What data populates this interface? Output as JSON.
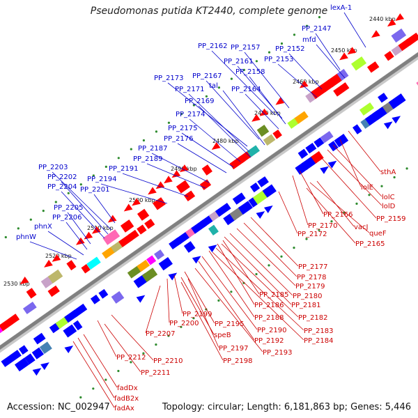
{
  "title": "Pseudomonas putida KT2440, complete genome",
  "footer": {
    "accession": "Accession: NC_002947",
    "summary": "Topology: circular; Length: 6,181,863 bp; Genes: 5,446"
  },
  "colors": {
    "backbone": "#808080",
    "forward_feature": "#0000ff",
    "reverse_feature": "#ff0000",
    "forward_label": "#0000cc",
    "reverse_label": "#cc0000",
    "tick_dot": "#2e8b2e"
  },
  "scale": {
    "ticks": [
      "2440 kbp",
      "2450 kbp",
      "2460 kbp",
      "2470 kbp",
      "2480 kbp",
      "2490 kbp",
      "2500 kbp",
      "2510 kbp",
      "2520 kbp",
      "2530 kbp"
    ]
  },
  "labels_forward": [
    "lexA-1",
    "PP_2147",
    "mfd",
    "PP_2152",
    "PP_2153",
    "PP_2157",
    "PP_2162",
    "PP_2161",
    "PP_2158",
    "PP_2164",
    "PP_2167",
    "tal",
    "PP_2173",
    "PP_2171",
    "PP_2169",
    "PP_2174",
    "PP_2175",
    "PP_2176",
    "PP_2187",
    "PP_2189",
    "PP_2191",
    "PP_2194",
    "PP_2203",
    "PP_2202",
    "PP_2204",
    "PP_2201",
    "PP_2205",
    "PP_2206",
    "phnX",
    "phnW"
  ],
  "labels_reverse": [
    "sthA",
    "lolE",
    "lolC",
    "lolD",
    "PP_2159",
    "PP_2166",
    "PP_2170",
    "vacJ",
    "queF",
    "PP_2172",
    "PP_2165",
    "PP_2177",
    "PP_2178",
    "PP_2179",
    "PP_2180",
    "PP_2185",
    "PP_2186",
    "PP_2181",
    "PP_2182",
    "PP_2188",
    "PP_2199",
    "PP_2200",
    "PP_2195",
    "speB",
    "PP_2190",
    "PP_2183",
    "PP_2184",
    "PP_2192",
    "PP_2197",
    "PP_2193",
    "PP_2198",
    "PP_2207",
    "PP_2212",
    "PP_2210",
    "PP_2211",
    "fadDx",
    "fadB2x",
    "fadAx"
  ]
}
